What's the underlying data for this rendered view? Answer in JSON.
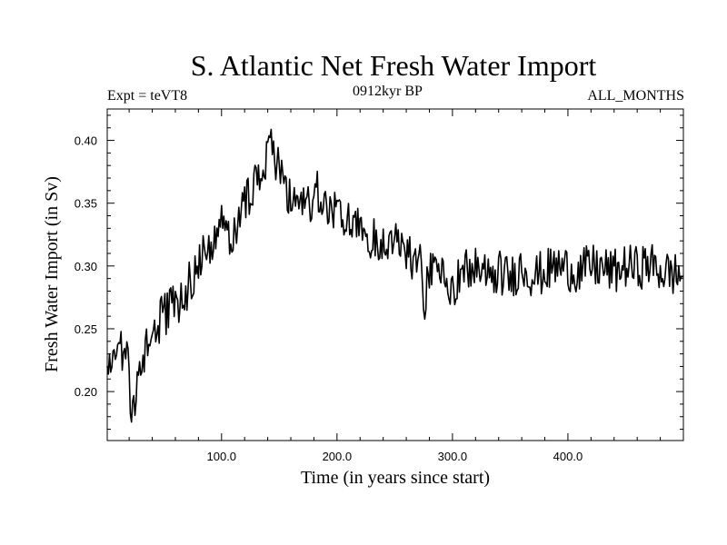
{
  "chart_data": {
    "type": "line",
    "title": "S. Atlantic Net Fresh Water Import",
    "experiment": "Expt = teVT8",
    "period": "0912kyr BP",
    "months": "ALL_MONTHS",
    "xlabel": "Time (in years since start)",
    "ylabel": "Fresh Water Import (in Sv)",
    "xlim": [
      1,
      500
    ],
    "ylim": [
      0.161,
      0.425
    ],
    "xticks": [
      100,
      200,
      300,
      400
    ],
    "xtick_labels": [
      "100.0",
      "200.0",
      "300.0",
      "400.0"
    ],
    "yticks": [
      0.2,
      0.25,
      0.3,
      0.35,
      0.4
    ],
    "ytick_labels": [
      "0.20",
      "0.25",
      "0.30",
      "0.35",
      "0.40"
    ],
    "grid": false,
    "series": [
      {
        "name": "Net fresh water import",
        "x": [
          1,
          10,
          18,
          22,
          28,
          35,
          45,
          55,
          65,
          75,
          80,
          90,
          100,
          110,
          120,
          130,
          138,
          144,
          150,
          158,
          165,
          175,
          185,
          195,
          205,
          215,
          225,
          235,
          245,
          255,
          265,
          272,
          276,
          280,
          290,
          300,
          310,
          320,
          330,
          340,
          350,
          360,
          370,
          380,
          390,
          400,
          410,
          420,
          430,
          440,
          450,
          460,
          470,
          480,
          490,
          500
        ],
        "values": [
          0.215,
          0.228,
          0.235,
          0.185,
          0.205,
          0.238,
          0.255,
          0.265,
          0.275,
          0.29,
          0.305,
          0.315,
          0.335,
          0.32,
          0.355,
          0.365,
          0.385,
          0.395,
          0.375,
          0.36,
          0.34,
          0.35,
          0.36,
          0.345,
          0.34,
          0.33,
          0.325,
          0.32,
          0.315,
          0.318,
          0.305,
          0.3,
          0.27,
          0.295,
          0.29,
          0.285,
          0.295,
          0.3,
          0.29,
          0.295,
          0.29,
          0.3,
          0.292,
          0.295,
          0.3,
          0.298,
          0.295,
          0.3,
          0.298,
          0.295,
          0.3,
          0.298,
          0.302,
          0.296,
          0.294,
          0.292
        ],
        "noise_amplitude_sv": 0.018
      }
    ]
  }
}
